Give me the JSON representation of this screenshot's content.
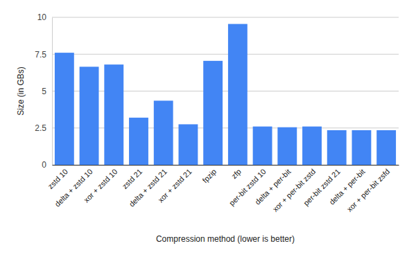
{
  "chart_data": {
    "type": "bar",
    "x_label": "Compression method (lower is better)",
    "y_label": "Size (in GBs)",
    "categories": [
      "zstd 10",
      "delta + zstd 10",
      "xor + zstd 10",
      "zstd 21",
      "delta + zstd 21",
      "xor + zstd 21",
      "fpzip",
      "zfp",
      "per-bit zstd 10",
      "delta + per-bit",
      "xor + per-bit zstd",
      "per-bit zstd 21",
      "delta + per-bit",
      "xor + per-bit zsfd"
    ],
    "values": [
      7.6,
      6.65,
      6.8,
      3.2,
      4.35,
      2.75,
      7.05,
      9.55,
      2.6,
      2.55,
      2.6,
      2.35,
      2.35,
      2.35
    ],
    "color": "#4285f4",
    "ylim": [
      0,
      10
    ],
    "yticks": [
      0,
      2.5,
      5,
      7.5,
      10
    ],
    "grid": true
  }
}
